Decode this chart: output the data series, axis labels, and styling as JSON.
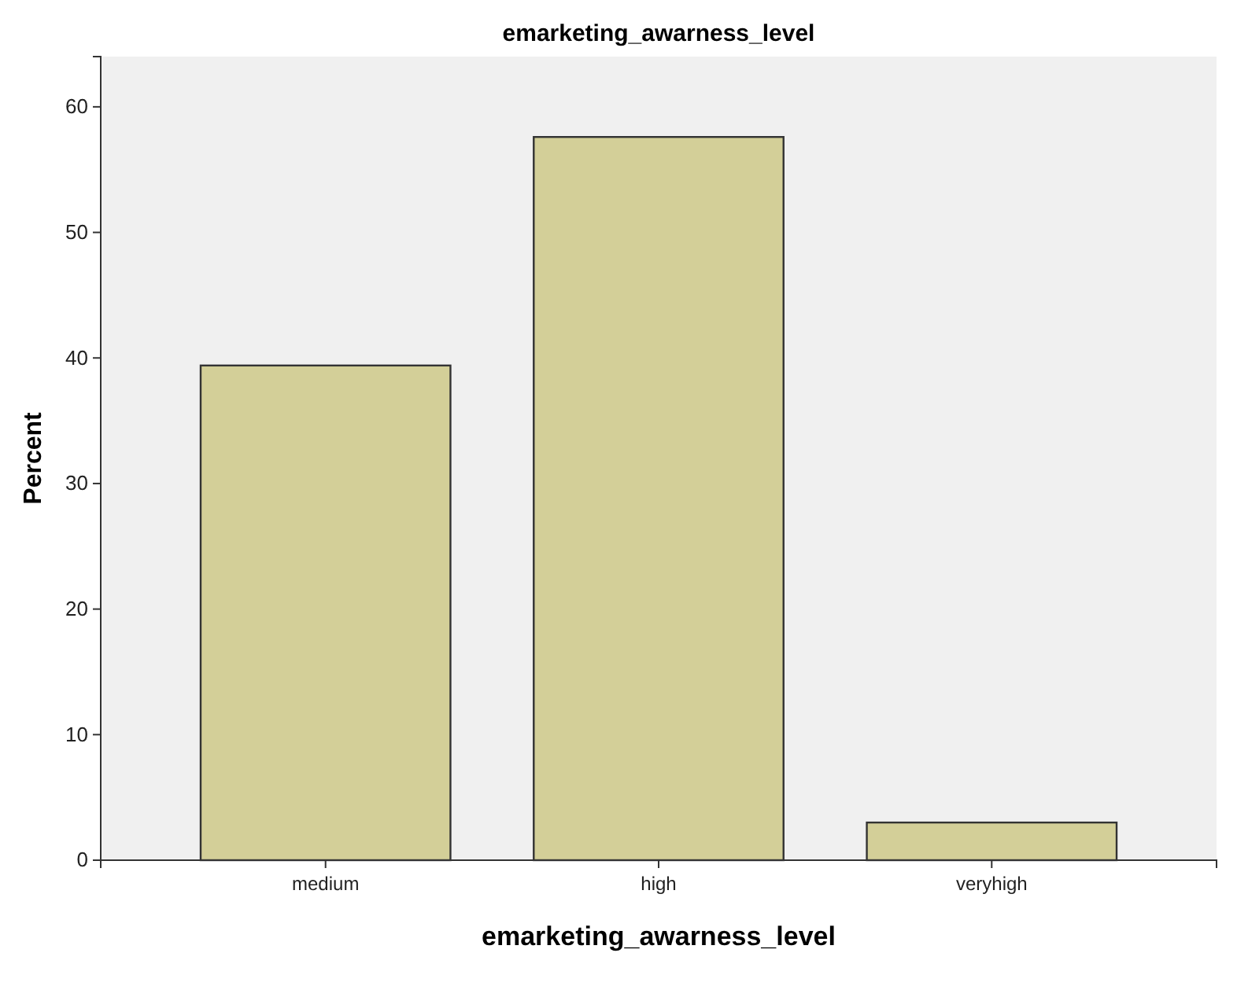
{
  "chart_data": {
    "type": "bar",
    "title": "emarketing_awarness_level",
    "xlabel": "emarketing_awarness_level",
    "ylabel": "Percent",
    "categories": [
      "medium",
      "high",
      "veryhigh"
    ],
    "values": [
      39.4,
      57.6,
      3.0
    ],
    "color": "#d3cf98",
    "ylim": [
      0,
      64
    ],
    "yticks": [
      0,
      10,
      20,
      30,
      40,
      50,
      60
    ],
    "grid": false
  }
}
